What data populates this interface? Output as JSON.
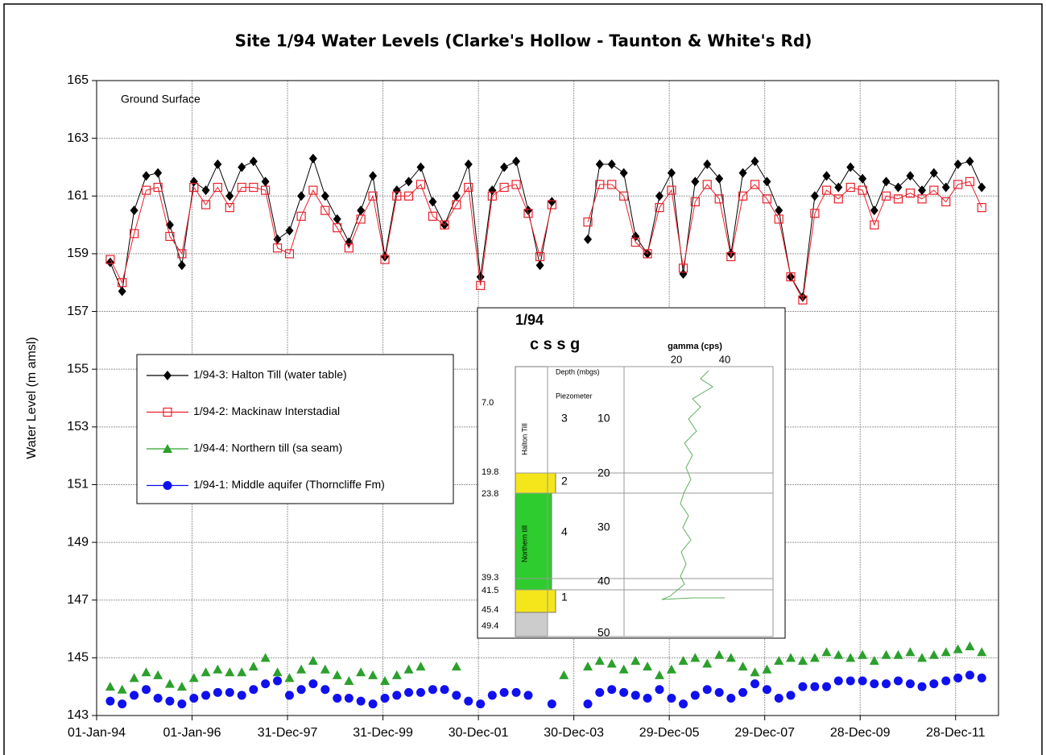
{
  "chart_data": {
    "type": "line",
    "title": "Site 1/94 Water Levels (Clarke's Hollow - Taunton & White's Rd)",
    "y_label": "Water Level (m amsl)",
    "annotation": "Ground Surface",
    "ylim": [
      143,
      165
    ],
    "yticks": [
      143,
      145,
      147,
      149,
      151,
      153,
      155,
      157,
      159,
      161,
      163,
      165
    ],
    "xlim": [
      "1994-01-01",
      "2012-11-20"
    ],
    "xticks": [
      {
        "value": "1994-01-01",
        "label": "01-Jan-94"
      },
      {
        "value": "1996-01-01",
        "label": "01-Jan-96"
      },
      {
        "value": "1997-12-31",
        "label": "31-Dec-97"
      },
      {
        "value": "1999-12-31",
        "label": "31-Dec-99"
      },
      {
        "value": "2001-12-30",
        "label": "30-Dec-01"
      },
      {
        "value": "2003-12-30",
        "label": "30-Dec-03"
      },
      {
        "value": "2005-12-29",
        "label": "29-Dec-05"
      },
      {
        "value": "2007-12-29",
        "label": "29-Dec-07"
      },
      {
        "value": "2009-12-28",
        "label": "28-Dec-09"
      },
      {
        "value": "2011-12-28",
        "label": "28-Dec-11"
      }
    ],
    "grid": true,
    "legend": "left",
    "x": [
      "1994-04-15",
      "1994-07-15",
      "1994-10-15",
      "1995-01-15",
      "1995-04-15",
      "1995-07-15",
      "1995-10-15",
      "1996-01-15",
      "1996-04-15",
      "1996-07-15",
      "1996-10-15",
      "1997-01-15",
      "1997-04-15",
      "1997-07-15",
      "1997-10-15",
      "1998-01-15",
      "1998-04-15",
      "1998-07-15",
      "1998-10-15",
      "1999-01-15",
      "1999-04-15",
      "1999-07-15",
      "1999-10-15",
      "2000-01-15",
      "2000-04-15",
      "2000-07-15",
      "2000-10-15",
      "2001-01-15",
      "2001-04-15",
      "2001-07-15",
      "2001-10-15",
      "2002-01-15",
      "2002-04-15",
      "2002-07-15",
      "2002-10-15",
      "2003-01-15",
      "2003-04-15",
      "2003-07-15",
      "2003-10-15",
      "2004-01-15",
      "2004-04-15",
      "2004-07-15",
      "2004-10-15",
      "2005-01-15",
      "2005-04-15",
      "2005-07-15",
      "2005-10-15",
      "2006-01-15",
      "2006-04-15",
      "2006-07-15",
      "2006-10-15",
      "2007-01-15",
      "2007-04-15",
      "2007-07-15",
      "2007-10-15",
      "2008-01-15",
      "2008-04-15",
      "2008-07-15",
      "2008-10-15",
      "2009-01-15",
      "2009-04-15",
      "2009-07-15",
      "2009-10-15",
      "2010-01-15",
      "2010-04-15",
      "2010-07-15",
      "2010-10-15",
      "2011-01-15",
      "2011-04-15",
      "2011-07-15",
      "2011-10-15",
      "2012-01-15",
      "2012-04-15",
      "2012-07-15"
    ],
    "series": [
      {
        "name": "1/94-3: Halton Till (water table)",
        "color": "#000000",
        "marker": "diamond",
        "line": true,
        "values": [
          158.7,
          157.7,
          160.5,
          161.7,
          161.8,
          160.0,
          158.6,
          161.5,
          161.2,
          162.1,
          161.0,
          162.0,
          162.2,
          161.5,
          159.5,
          159.8,
          161.0,
          162.3,
          161.0,
          160.2,
          159.4,
          160.5,
          161.7,
          158.9,
          161.2,
          161.5,
          162.0,
          160.8,
          160.0,
          161.0,
          162.1,
          158.2,
          161.2,
          162.0,
          162.2,
          160.5,
          158.6,
          160.8,
          null,
          null,
          159.5,
          162.1,
          162.1,
          161.8,
          159.6,
          159.0,
          161.0,
          161.8,
          158.3,
          161.5,
          162.1,
          161.6,
          159.0,
          161.8,
          162.2,
          161.5,
          160.5,
          158.2,
          157.5,
          161.0,
          161.7,
          161.3,
          162.0,
          161.6,
          160.5,
          161.5,
          161.3,
          161.7,
          161.2,
          161.8,
          161.3,
          162.1,
          162.2,
          161.3
        ]
      },
      {
        "name": "1/94-2: Mackinaw Interstadial",
        "color": "#e8202a",
        "marker": "square",
        "line": true,
        "values": [
          158.8,
          158.0,
          159.7,
          161.2,
          161.3,
          159.6,
          159.0,
          161.3,
          160.7,
          161.3,
          160.6,
          161.3,
          161.3,
          161.2,
          159.2,
          159.0,
          160.3,
          161.2,
          160.5,
          159.9,
          159.2,
          160.2,
          161.0,
          158.8,
          161.0,
          161.0,
          161.4,
          160.3,
          160.0,
          160.7,
          161.3,
          157.9,
          161.0,
          161.3,
          161.4,
          160.4,
          158.9,
          160.7,
          null,
          null,
          160.1,
          161.4,
          161.4,
          161.0,
          159.4,
          159.0,
          160.6,
          161.2,
          158.5,
          160.8,
          161.4,
          160.9,
          158.9,
          161.0,
          161.4,
          160.9,
          160.2,
          158.2,
          157.4,
          160.4,
          161.2,
          160.9,
          161.3,
          161.2,
          160.0,
          161.0,
          160.9,
          161.1,
          160.9,
          161.2,
          160.8,
          161.4,
          161.5,
          160.6
        ]
      },
      {
        "name": "1/94-4: Northern till (sa seam)",
        "color": "#2ca02c",
        "marker": "triangle",
        "line": false,
        "values": [
          144.0,
          143.9,
          144.3,
          144.5,
          144.4,
          144.1,
          144.0,
          144.3,
          144.5,
          144.6,
          144.5,
          144.5,
          144.7,
          145.0,
          144.5,
          144.3,
          144.6,
          144.9,
          144.6,
          144.4,
          144.2,
          144.5,
          144.4,
          144.2,
          144.4,
          144.6,
          144.7,
          null,
          null,
          144.7,
          null,
          null,
          null,
          null,
          null,
          null,
          null,
          null,
          144.4,
          null,
          144.7,
          144.9,
          144.8,
          144.6,
          144.9,
          144.7,
          144.4,
          144.6,
          144.9,
          145.0,
          144.8,
          145.1,
          145.0,
          144.7,
          144.5,
          144.6,
          144.9,
          145.0,
          144.9,
          145.0,
          145.2,
          145.1,
          145.0,
          145.1,
          144.9,
          145.1,
          145.1,
          145.2,
          145.0,
          145.1,
          145.2,
          145.3,
          145.4,
          145.2
        ]
      },
      {
        "name": "1/94-1: Middle aquifer (Thorncliffe Fm)",
        "color": "#1010ee",
        "marker": "circle",
        "line": false,
        "values": [
          143.5,
          143.4,
          143.7,
          143.9,
          143.6,
          143.5,
          143.4,
          143.6,
          143.7,
          143.8,
          143.8,
          143.7,
          143.9,
          144.1,
          144.2,
          143.7,
          143.9,
          144.1,
          143.9,
          143.6,
          143.6,
          143.5,
          143.4,
          143.6,
          143.7,
          143.8,
          143.8,
          143.9,
          143.9,
          143.7,
          143.5,
          143.4,
          143.7,
          143.8,
          143.8,
          143.7,
          null,
          143.4,
          null,
          null,
          143.4,
          143.8,
          143.9,
          143.8,
          143.7,
          143.6,
          143.9,
          143.6,
          143.4,
          143.7,
          143.9,
          143.8,
          143.6,
          143.8,
          144.1,
          143.9,
          143.6,
          143.7,
          144.0,
          144.0,
          144.0,
          144.2,
          144.2,
          144.2,
          144.1,
          144.1,
          144.2,
          144.1,
          144.0,
          144.1,
          144.2,
          144.3,
          144.4,
          144.3
        ]
      }
    ]
  },
  "inset": {
    "title": "1/94",
    "columns": "c s s g",
    "gamma_label": "gamma (cps)",
    "gamma_ticks": [
      "20",
      "40"
    ],
    "depth_label": "Depth (mbgs)",
    "piezometer_label": "Piezometer",
    "unit_depths": [
      "7.0",
      "19.8",
      "23.8",
      "39.3",
      "41.5",
      "45.4",
      "49.4"
    ],
    "piezometers": [
      "3",
      "2",
      "4",
      "1"
    ],
    "depth_ticks": [
      "10",
      "20",
      "30",
      "40",
      "50"
    ],
    "units": [
      "Halton Till",
      "Northern till"
    ]
  }
}
